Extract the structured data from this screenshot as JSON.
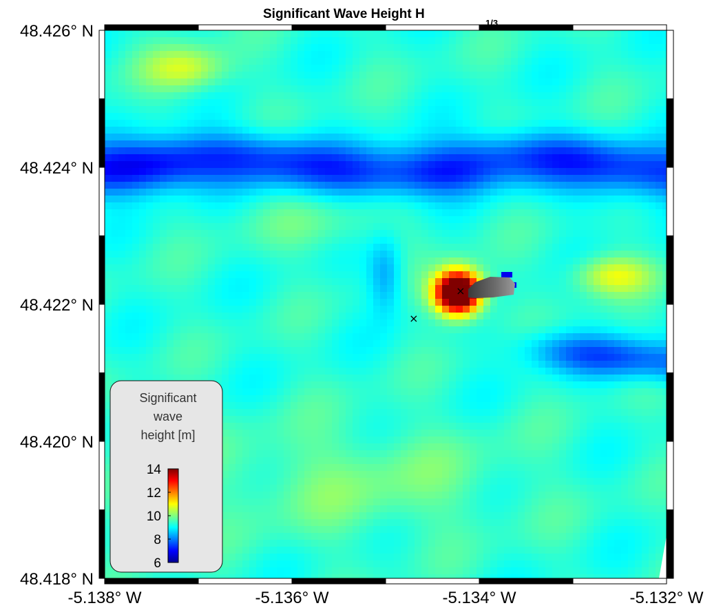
{
  "map": {
    "title": "Significant Wave Height H",
    "title_subscript": "1/3",
    "lat_labels": [
      "48.426° N",
      "48.424° N",
      "48.422° N",
      "48.420° N",
      "48.418° N"
    ],
    "lon_labels": [
      "-5.138° W",
      "-5.136° W",
      "-5.134° W",
      "-5.132° W"
    ],
    "extent": {
      "lon_min": -5.138,
      "lon_max": -5.132,
      "lat_min": 48.418,
      "lat_max": 48.426
    }
  },
  "colorbar": {
    "title_lines": [
      "Significant",
      "wave",
      "height [m]"
    ],
    "ticks": [
      "14",
      "12",
      "10",
      "8",
      "6"
    ],
    "range": [
      6,
      14
    ],
    "colormap": "jet"
  },
  "field": {
    "variable": "significant wave height",
    "units": "m",
    "typical_range": [
      7,
      11
    ],
    "peak_value": 14,
    "colors": {
      "land_or_structure": "#505050",
      "marker": "#000000"
    }
  },
  "markers": [
    {
      "symbol": "×",
      "lon": -5.1342,
      "lat": 48.4222
    },
    {
      "symbol": "×",
      "lon": -5.1347,
      "lat": 48.4218
    }
  ]
}
